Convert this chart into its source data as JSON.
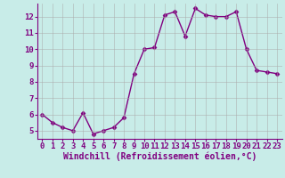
{
  "x": [
    0,
    1,
    2,
    3,
    4,
    5,
    6,
    7,
    8,
    9,
    10,
    11,
    12,
    13,
    14,
    15,
    16,
    17,
    18,
    19,
    20,
    21,
    22,
    23
  ],
  "y": [
    6.0,
    5.5,
    5.2,
    5.0,
    6.1,
    4.8,
    5.0,
    5.2,
    5.8,
    8.5,
    10.0,
    10.1,
    12.1,
    12.3,
    10.8,
    12.5,
    12.1,
    12.0,
    12.0,
    12.3,
    10.0,
    8.7,
    8.6,
    8.5
  ],
  "line_color": "#800080",
  "marker": "D",
  "marker_size": 2.5,
  "bg_color": "#c8ece8",
  "grid_color": "#aaaaaa",
  "xlabel": "Windchill (Refroidissement éolien,°C)",
  "xlabel_color": "#800080",
  "tick_color": "#800080",
  "spine_color": "#800080",
  "ylim": [
    4.5,
    12.8
  ],
  "xlim": [
    -0.5,
    23.5
  ],
  "yticks": [
    5,
    6,
    7,
    8,
    9,
    10,
    11,
    12
  ],
  "xticks": [
    0,
    1,
    2,
    3,
    4,
    5,
    6,
    7,
    8,
    9,
    10,
    11,
    12,
    13,
    14,
    15,
    16,
    17,
    18,
    19,
    20,
    21,
    22,
    23
  ],
  "linewidth": 1.0,
  "font_size": 6.5,
  "xlabel_font_size": 7.0
}
